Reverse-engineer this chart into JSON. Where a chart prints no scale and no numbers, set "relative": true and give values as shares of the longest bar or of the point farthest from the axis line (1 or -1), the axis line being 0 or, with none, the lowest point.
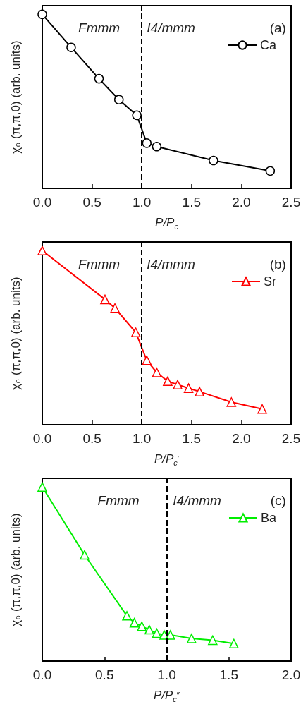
{
  "chart_data": [
    {
      "type": "line",
      "xlabel": "P/P$_{c}$",
      "ylabel": "χ₀ (π,π,0) (arb. units)",
      "relative": true,
      "xlim": [
        0,
        2.5
      ],
      "xticks": [
        {
          "value": 0,
          "label": "0.0"
        },
        0.5,
        {
          "value": 1,
          "label": "1.0"
        },
        1.5,
        {
          "value": 2,
          "label": "2.0"
        },
        2.5
      ],
      "marker": "circle",
      "legend": "top right",
      "grid": false,
      "line_style": "solid",
      "annotations": [
        "Fmmm",
        "I4/mmm",
        "(a)"
      ],
      "ref_lines": [
        {
          "axis": "x",
          "value": 1,
          "line_style": "dashed",
          "color": "#000000"
        }
      ],
      "series": [
        {
          "name": "Ca",
          "color": "#000000",
          "x": [
            0,
            0.29,
            0.57,
            0.77,
            0.95,
            1.05,
            1.15,
            1.72,
            2.29
          ],
          "values": [
            1,
            0.81,
            0.63,
            0.51,
            0.42,
            0.26,
            0.24,
            0.16,
            0.1
          ]
        }
      ]
    },
    {
      "type": "line",
      "xlabel": "P/P$_{c}$′",
      "ylabel": "χ₀ (π,π,0) (arb. units)",
      "relative": true,
      "xlim": [
        0,
        2.5
      ],
      "xticks": [
        {
          "value": 0,
          "label": "0.0"
        },
        0.5,
        {
          "value": 1,
          "label": "1.0"
        },
        1.5,
        {
          "value": 2,
          "label": "2.0"
        },
        2.5
      ],
      "marker": "triangle",
      "legend": "top right",
      "grid": false,
      "line_style": "solid",
      "annotations": [
        "Fmmm",
        "I4/mmm",
        "(b)"
      ],
      "ref_lines": [
        {
          "axis": "x",
          "value": 1,
          "line_style": "dashed",
          "color": "#000000"
        }
      ],
      "series": [
        {
          "name": "Sr",
          "color": "#ff0000",
          "x": [
            0,
            0.63,
            0.73,
            0.94,
            1.05,
            1.15,
            1.26,
            1.36,
            1.47,
            1.58,
            1.9,
            2.21
          ],
          "values": [
            1,
            0.72,
            0.67,
            0.53,
            0.37,
            0.3,
            0.25,
            0.23,
            0.21,
            0.19,
            0.13,
            0.09
          ]
        }
      ]
    },
    {
      "type": "line",
      "xlabel": "P/P$_{c}$″",
      "ylabel": "χ₀ (π,π,0) (arb. units)",
      "relative": true,
      "xlim": [
        0,
        2
      ],
      "xticks": [
        {
          "value": 0,
          "label": "0.0"
        },
        0.5,
        {
          "value": 1,
          "label": "1.0"
        },
        1.5,
        {
          "value": 2,
          "label": "2.0"
        }
      ],
      "marker": "triangle",
      "legend": "top right",
      "grid": false,
      "line_style": "solid",
      "annotations": [
        "Fmmm",
        "I4/mmm",
        "(c)"
      ],
      "ref_lines": [
        {
          "axis": "x",
          "value": 1,
          "line_style": "dashed",
          "color": "#000000"
        }
      ],
      "series": [
        {
          "name": "Ba",
          "color": "#00ee00",
          "x": [
            0,
            0.34,
            0.68,
            0.74,
            0.8,
            0.86,
            0.92,
            0.98,
            1.03,
            1.2,
            1.37,
            1.54
          ],
          "values": [
            1,
            0.61,
            0.26,
            0.22,
            0.2,
            0.18,
            0.16,
            0.15,
            0.15,
            0.13,
            0.12,
            0.1
          ]
        }
      ]
    }
  ]
}
